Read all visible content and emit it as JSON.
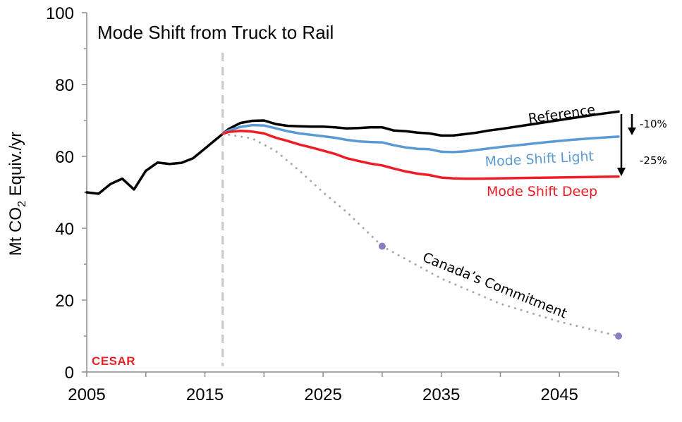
{
  "chart_data": {
    "type": "line",
    "title": "Mode Shift from Truck to Rail",
    "ylabel": "Mt CO2 Equiv./yr",
    "ylabel_parts": {
      "main": "Mt CO",
      "sub": "2",
      "rest": " Equiv./yr"
    },
    "xlabel": "",
    "xlim": [
      2005,
      2050
    ],
    "ylim": [
      0,
      100
    ],
    "x_ticks": [
      "2005",
      "2015",
      "2025",
      "2035",
      "2045"
    ],
    "y_ticks": [
      "0",
      "20",
      "40",
      "60",
      "80",
      "100"
    ],
    "grid": false,
    "marker_year": 2016.5,
    "series": [
      {
        "name": "Reference",
        "color": "#000000",
        "style": "solid",
        "points": [
          [
            2005,
            50
          ],
          [
            2006,
            49.6
          ],
          [
            2007,
            52.3
          ],
          [
            2008,
            53.8
          ],
          [
            2009,
            50.8
          ],
          [
            2010,
            56
          ],
          [
            2011,
            58.3
          ],
          [
            2012,
            57.9
          ],
          [
            2013,
            58.2
          ],
          [
            2014,
            59.5
          ],
          [
            2015,
            62.2
          ],
          [
            2016,
            64.9
          ],
          [
            2017,
            67.6
          ],
          [
            2018,
            69.3
          ],
          [
            2019,
            69.9
          ],
          [
            2020,
            70
          ],
          [
            2021,
            69
          ],
          [
            2022,
            68.5
          ],
          [
            2023,
            68.4
          ],
          [
            2024,
            68.3
          ],
          [
            2025,
            68.3
          ],
          [
            2026,
            68.1
          ],
          [
            2027,
            67.8
          ],
          [
            2028,
            67.9
          ],
          [
            2029,
            68.1
          ],
          [
            2030,
            68.1
          ],
          [
            2031,
            67.2
          ],
          [
            2032,
            67
          ],
          [
            2033,
            66.6
          ],
          [
            2034,
            66.4
          ],
          [
            2035,
            65.8
          ],
          [
            2036,
            65.8
          ],
          [
            2037,
            66.2
          ],
          [
            2038,
            66.6
          ],
          [
            2039,
            67.2
          ],
          [
            2040,
            67.6
          ],
          [
            2042,
            68.6
          ],
          [
            2044,
            69.6
          ],
          [
            2046,
            70.6
          ],
          [
            2048,
            71.6
          ],
          [
            2050,
            72.5
          ]
        ]
      },
      {
        "name": "Mode Shift Light",
        "color": "#5b9bd5",
        "style": "solid",
        "points": [
          [
            2016.5,
            66.3
          ],
          [
            2017,
            67.2
          ],
          [
            2018,
            68.2
          ],
          [
            2019,
            68.7
          ],
          [
            2020,
            68.6
          ],
          [
            2021,
            67.8
          ],
          [
            2022,
            67
          ],
          [
            2023,
            66.4
          ],
          [
            2024,
            66
          ],
          [
            2025,
            65.6
          ],
          [
            2026,
            65.2
          ],
          [
            2027,
            64.6
          ],
          [
            2028,
            64.2
          ],
          [
            2029,
            64
          ],
          [
            2030,
            63.9
          ],
          [
            2031,
            63.1
          ],
          [
            2032,
            62.5
          ],
          [
            2033,
            62.1
          ],
          [
            2034,
            62
          ],
          [
            2035,
            61.3
          ],
          [
            2036,
            61.2
          ],
          [
            2037,
            61.4
          ],
          [
            2038,
            61.8
          ],
          [
            2039,
            62.2
          ],
          [
            2040,
            62.6
          ],
          [
            2042,
            63.3
          ],
          [
            2044,
            64
          ],
          [
            2046,
            64.6
          ],
          [
            2048,
            65.1
          ],
          [
            2050,
            65.5
          ]
        ]
      },
      {
        "name": "Mode Shift Deep",
        "color": "#ee1c25",
        "style": "solid",
        "points": [
          [
            2016.5,
            66.3
          ],
          [
            2017,
            66.8
          ],
          [
            2018,
            67.1
          ],
          [
            2019,
            66.9
          ],
          [
            2020,
            66.4
          ],
          [
            2021,
            65.2
          ],
          [
            2022,
            64.3
          ],
          [
            2023,
            63.3
          ],
          [
            2024,
            62.5
          ],
          [
            2025,
            61.6
          ],
          [
            2026,
            60.7
          ],
          [
            2027,
            59.5
          ],
          [
            2028,
            58.7
          ],
          [
            2029,
            58
          ],
          [
            2030,
            57.5
          ],
          [
            2031,
            56.6
          ],
          [
            2032,
            55.8
          ],
          [
            2033,
            55.2
          ],
          [
            2034,
            54.8
          ],
          [
            2035,
            54.1
          ],
          [
            2036,
            53.9
          ],
          [
            2037,
            53.8
          ],
          [
            2038,
            53.8
          ],
          [
            2040,
            53.9
          ],
          [
            2042,
            54
          ],
          [
            2044,
            54.1
          ],
          [
            2046,
            54.2
          ],
          [
            2048,
            54.3
          ],
          [
            2050,
            54.4
          ]
        ]
      },
      {
        "name": "Canada’s Commitment",
        "color": "#a8a8a8",
        "style": "dotted",
        "points": [
          [
            2016.5,
            66.3
          ],
          [
            2019,
            65
          ],
          [
            2021,
            61.5
          ],
          [
            2023,
            56
          ],
          [
            2025,
            50
          ],
          [
            2027,
            44.5
          ],
          [
            2030,
            35
          ],
          [
            2035,
            26
          ],
          [
            2040,
            19
          ],
          [
            2045,
            14
          ],
          [
            2050,
            10
          ]
        ],
        "markers": [
          [
            2030,
            35
          ],
          [
            2050,
            10
          ]
        ],
        "marker_color": "#8e7cc3"
      }
    ],
    "annotations": {
      "arrow_small": "-10%",
      "arrow_large": "-25%"
    }
  },
  "logo_text": "CESAR"
}
